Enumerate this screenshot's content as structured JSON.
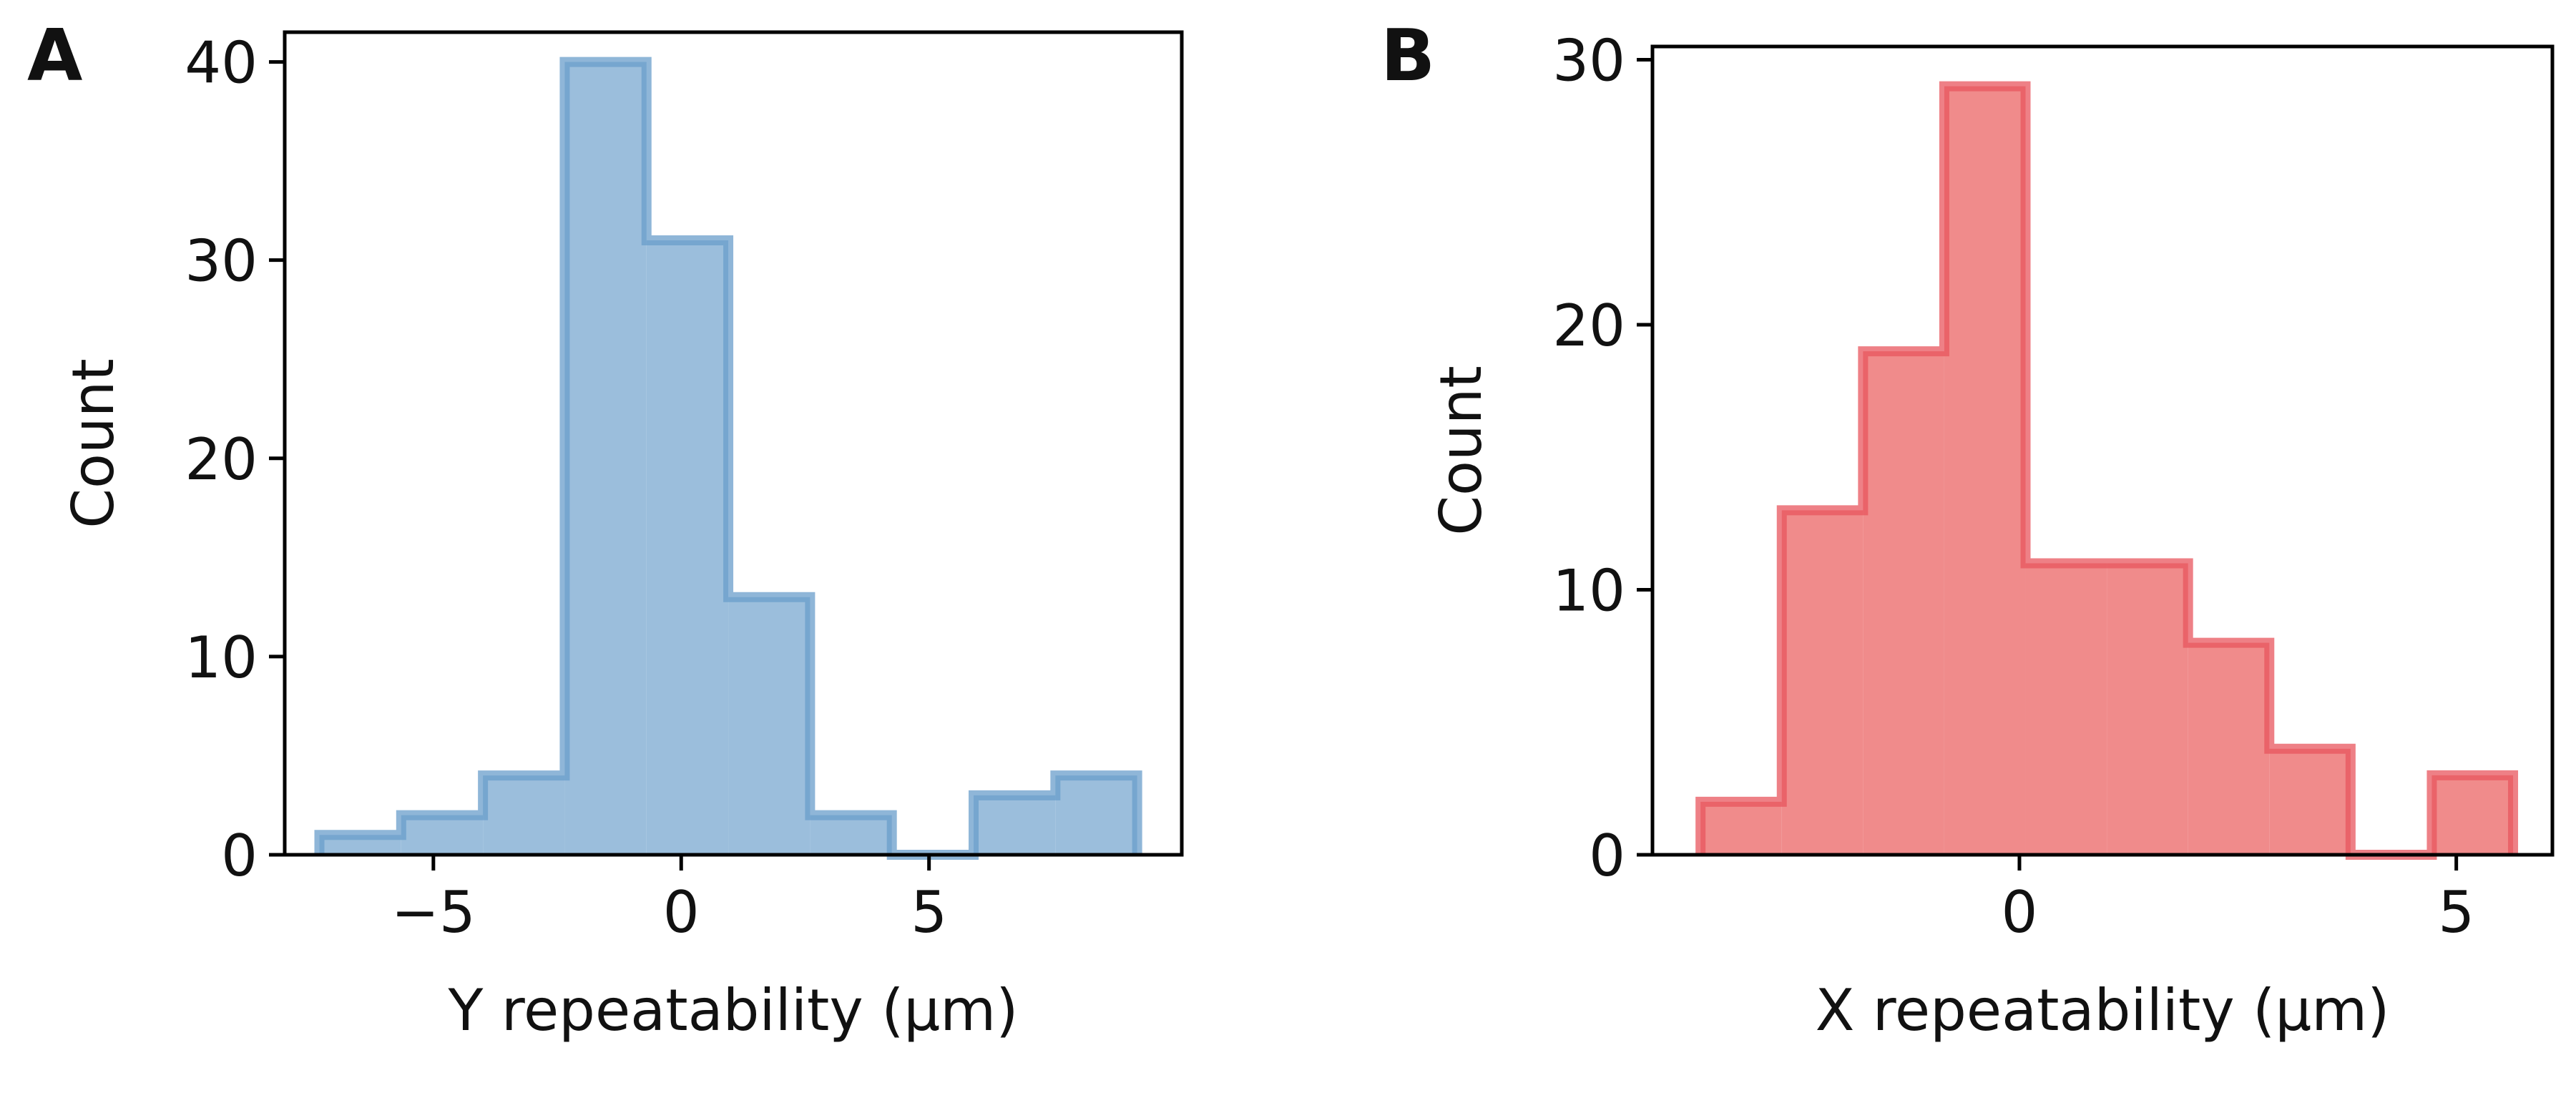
{
  "figure": {
    "panel_labels": [
      "A",
      "B"
    ]
  },
  "chart_data": [
    {
      "type": "histogram",
      "panel_label": "A",
      "xlabel": "Y repeatability (µm)",
      "ylabel": "Count",
      "xlim": [
        -8.0,
        10.1
      ],
      "ylim": [
        0,
        41.5
      ],
      "xticks": [
        -5,
        0,
        5
      ],
      "xtick_labels": [
        "−5",
        "0",
        "5"
      ],
      "yticks": [
        0,
        10,
        20,
        30,
        40
      ],
      "ytick_labels": [
        "0",
        "10",
        "20",
        "30",
        "40"
      ],
      "bin_edges": [
        -7.3,
        -5.65,
        -4.0,
        -2.35,
        -0.7,
        0.95,
        2.6,
        4.25,
        5.9,
        7.55,
        9.2
      ],
      "counts": [
        1,
        2,
        4,
        40,
        31,
        13,
        2,
        0,
        3,
        4
      ],
      "color": "#6a9ecb",
      "fill_color": "#9bbedc",
      "grid": false
    },
    {
      "type": "histogram",
      "panel_label": "B",
      "xlabel": "X repeatability (µm)",
      "ylabel": "Count",
      "xlim": [
        -4.2,
        6.1
      ],
      "ylim": [
        0,
        30.5
      ],
      "xticks": [
        0,
        5
      ],
      "xtick_labels": [
        "0",
        "5"
      ],
      "yticks": [
        0,
        10,
        20,
        30
      ],
      "ytick_labels": [
        "0",
        "10",
        "20",
        "30"
      ],
      "bin_edges": [
        -3.65,
        -2.72,
        -1.79,
        -0.86,
        0.07,
        1.0,
        1.93,
        2.86,
        3.79,
        4.72,
        5.65
      ],
      "counts": [
        2,
        13,
        19,
        29,
        11,
        11,
        8,
        4,
        0,
        3
      ],
      "color": "#e8555d",
      "fill_color": "#f08b8b",
      "grid": false
    }
  ]
}
